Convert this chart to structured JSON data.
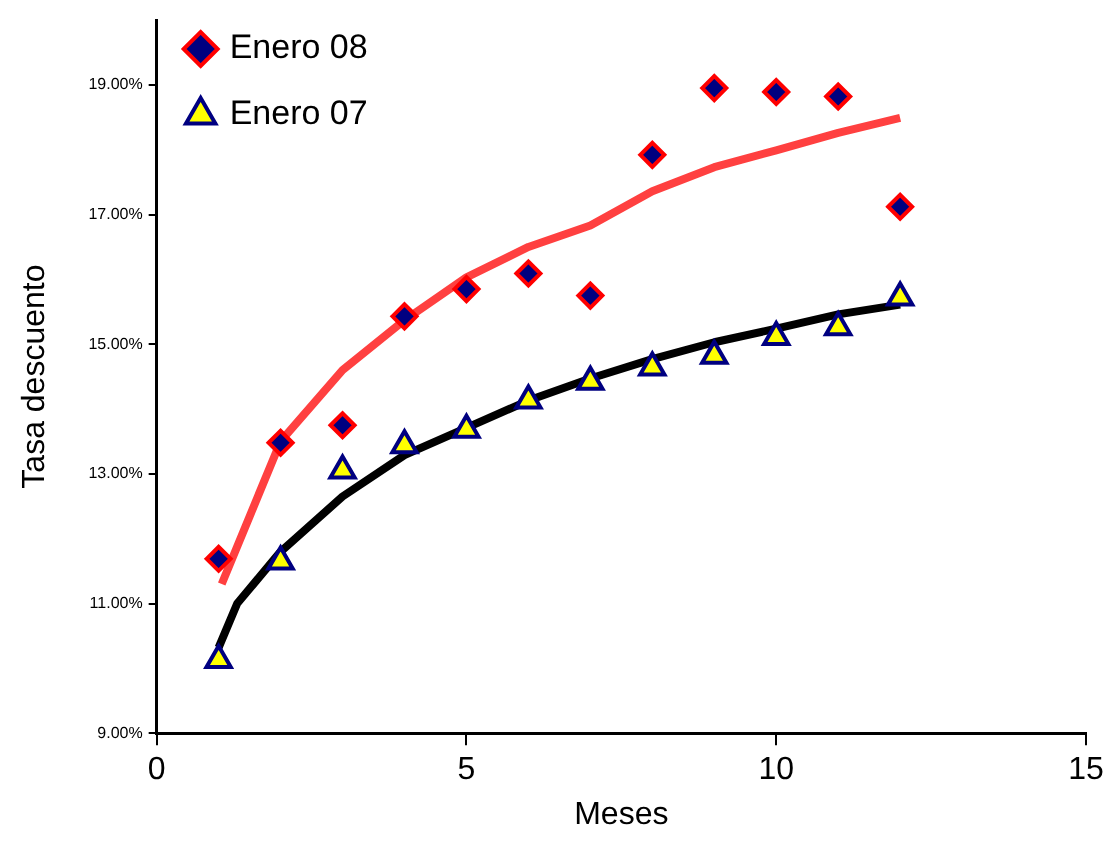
{
  "chart_data": {
    "type": "scatter",
    "xlabel": "Meses",
    "ylabel": "Tasa descuento",
    "x": [
      1,
      2,
      3,
      4,
      5,
      6,
      7,
      8,
      9,
      10,
      11,
      12
    ],
    "series": [
      {
        "name": "Enero 08",
        "marker": "diamond",
        "color": "#ff0000",
        "values": [
          11.69,
          13.48,
          13.75,
          15.43,
          15.85,
          16.09,
          15.75,
          17.92,
          18.95,
          18.89,
          18.82,
          17.12
        ]
      },
      {
        "name": "Enero 07",
        "marker": "triangle",
        "color": "#ffff00",
        "values": [
          10.13,
          11.65,
          13.05,
          13.44,
          13.68,
          14.13,
          14.42,
          14.64,
          14.82,
          15.11,
          15.26,
          15.72
        ]
      },
      {
        "type": "line",
        "marker": "none",
        "color": "#ff4040",
        "x": [
          1.05,
          2,
          3,
          4,
          5,
          6,
          7,
          8,
          9,
          10,
          11,
          12
        ],
        "values": [
          11.3,
          13.5,
          14.6,
          15.37,
          16.03,
          16.5,
          16.83,
          17.36,
          17.73,
          17.99,
          18.26,
          18.49
        ]
      },
      {
        "type": "line",
        "marker": "none",
        "color": "#000000",
        "x": [
          1,
          1.3,
          2,
          3,
          4,
          5,
          6,
          7,
          8,
          9,
          10,
          11,
          12
        ],
        "values": [
          10.32,
          11.0,
          11.8,
          12.65,
          13.29,
          13.71,
          14.13,
          14.47,
          14.77,
          15.03,
          15.24,
          15.46,
          15.61
        ]
      }
    ],
    "xlim": [
      0,
      15
    ],
    "xticks": [
      0,
      5,
      10,
      15
    ],
    "ylim": [
      9,
      20
    ],
    "yticks": [
      {
        "value": 9,
        "label": "9.00%"
      },
      {
        "value": 11,
        "label": "11.00%"
      },
      {
        "value": 13,
        "label": "13.00%"
      },
      {
        "value": 15,
        "label": "15.00%"
      },
      {
        "value": 17,
        "label": "17.00%"
      },
      {
        "value": 19,
        "label": "19.00%"
      }
    ],
    "grid": false,
    "legend": "top left"
  }
}
